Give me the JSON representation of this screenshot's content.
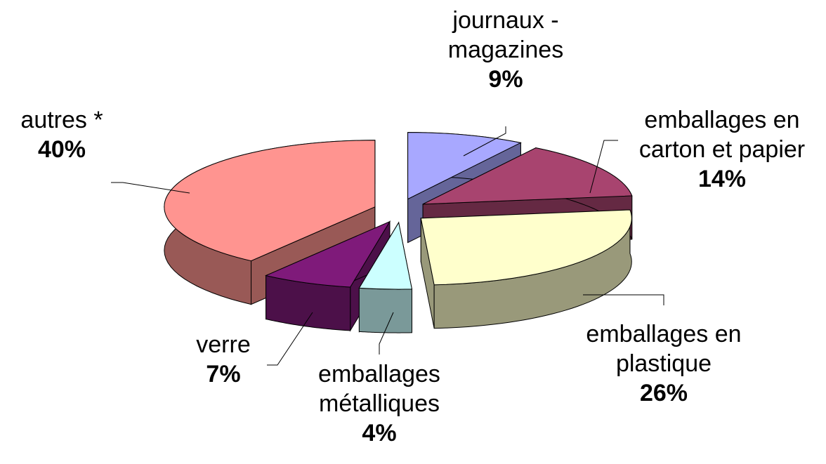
{
  "chart_data": {
    "type": "pie3d",
    "categories": [
      "journaux - magazines",
      "emballages en carton et papier",
      "emballages en plastique",
      "emballages métalliques",
      "verre",
      "autres *"
    ],
    "values": [
      9,
      14,
      26,
      4,
      7,
      40
    ],
    "value_labels": [
      "9%",
      "14%",
      "26%",
      "4%",
      "7%",
      "40%"
    ],
    "colors": [
      "#a8a8ff",
      "#a8446f",
      "#ffffcc",
      "#ccffff",
      "#7f1a7a",
      "#ff9490"
    ]
  }
}
